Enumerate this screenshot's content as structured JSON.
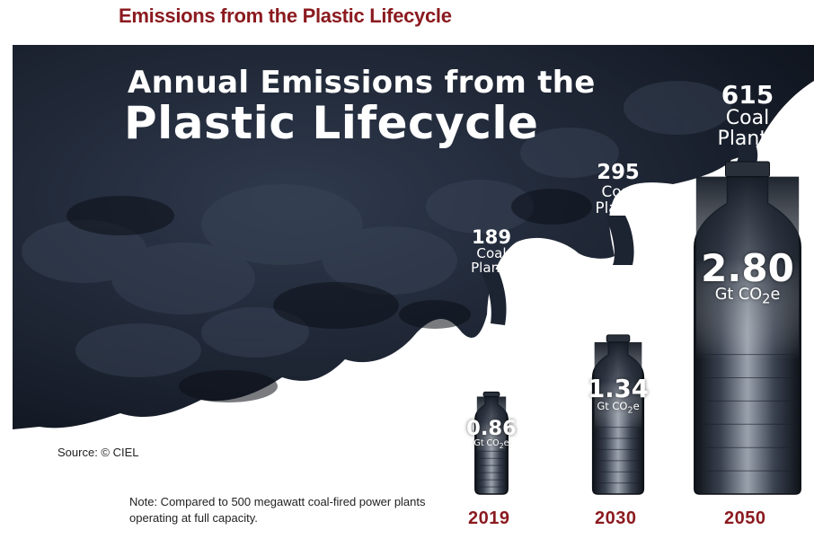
{
  "header": {
    "title": "Emissions from the Plastic Lifecycle"
  },
  "infographic": {
    "title_line1": "Annual Emissions from the",
    "title_line2": "Plastic Lifecycle",
    "source": "Source: © CIEL",
    "note": "Note: Compared to 500 megawatt coal-fired power plants operating at full capacity.",
    "colors": {
      "smoke": "#1f2736",
      "smoke_highlight": "#3a4558",
      "year_text": "#8b1a1f",
      "heading_text": "#8b1a1f"
    }
  },
  "chart_data": {
    "type": "bar",
    "title": "Annual Emissions from the Plastic Lifecycle",
    "categories": [
      "2019",
      "2030",
      "2050"
    ],
    "values": [
      0.86,
      1.34,
      2.8
    ],
    "value_labels": [
      "0.86",
      "1.34",
      "2.80"
    ],
    "unit_prefix": "Gt CO",
    "unit_sub": "2",
    "unit_suffix": "e",
    "coal_plants": [
      189,
      295,
      615
    ],
    "coal_plants_label": [
      "Coal",
      "Plants"
    ],
    "mark_shape": "bottle"
  }
}
